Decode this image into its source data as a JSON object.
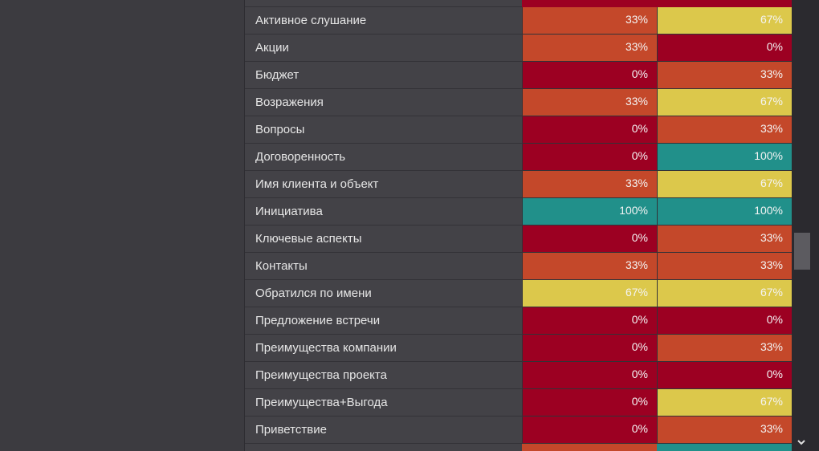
{
  "table": {
    "colors": [
      "#9c0022",
      "#c4482a",
      "#dcc84b",
      "#21908a"
    ],
    "rows": [
      [
        "Активное слушание",
        "33%",
        "67%"
      ],
      [
        "Акции",
        "33%",
        "0%"
      ],
      [
        "Бюджет",
        "0%",
        "33%"
      ],
      [
        "Возражения",
        "33%",
        "67%"
      ],
      [
        "Вопросы",
        "0%",
        "33%"
      ],
      [
        "Договоренность",
        "0%",
        "100%"
      ],
      [
        "Имя клиента и объект",
        "33%",
        "67%"
      ],
      [
        "Инициатива",
        "100%",
        "100%"
      ],
      [
        "Ключевые аспекты",
        "0%",
        "33%"
      ],
      [
        "Контакты",
        "33%",
        "33%"
      ],
      [
        "Обратился по имени",
        "67%",
        "67%"
      ],
      [
        "Предложение встречи",
        "0%",
        "0%"
      ],
      [
        "Преимущества компании",
        "0%",
        "33%"
      ],
      [
        "Преимущества проекта",
        "0%",
        "0%"
      ],
      [
        "Преимущества+Выгода",
        "0%",
        "67%"
      ],
      [
        "Приветствие",
        "0%",
        "33%"
      ]
    ]
  }
}
